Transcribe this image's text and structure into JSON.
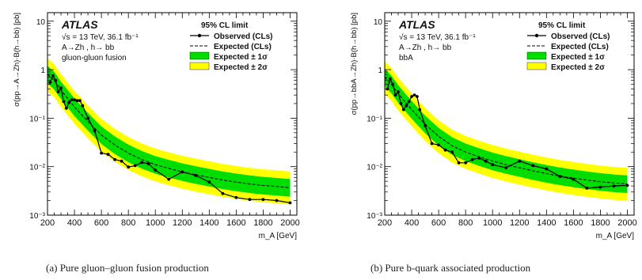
{
  "chart_data": [
    {
      "type": "line",
      "id": "a",
      "panel_label": "(a)",
      "caption": "Pure gluon–gluon fusion production",
      "experiment": "ATLAS",
      "energy_text": "√s = 13 TeV, 36.1 fb⁻¹",
      "process_text": "A→Zh , h→ bb",
      "production_text": "gluon-gluon fusion",
      "legend_title": "95% CL limit",
      "legend_position": "top-right",
      "xlabel": "m_A [GeV]",
      "ylabel": "σ(pp→A→Zh)·B(h→bb) [pb]",
      "xlim": [
        200,
        2050
      ],
      "ylim": [
        0.001,
        15
      ],
      "ylog": true,
      "xticks": [
        200,
        400,
        600,
        800,
        1000,
        1200,
        1400,
        1600,
        1800,
        2000
      ],
      "yticks": [
        0.001,
        0.01,
        0.1,
        1,
        10
      ],
      "ytick_labels": [
        "10⁻³",
        "10⁻²",
        "10⁻¹",
        "1",
        "10"
      ],
      "series": [
        {
          "name": "Observed (CLs)",
          "style": "solid-markers",
          "color": "#000000",
          "x": [
            220,
            240,
            260,
            280,
            300,
            320,
            340,
            360,
            380,
            400,
            420,
            440,
            460,
            500,
            550,
            600,
            650,
            700,
            750,
            800,
            850,
            900,
            950,
            1000,
            1100,
            1200,
            1300,
            1400,
            1500,
            1600,
            1700,
            1800,
            1900,
            2000
          ],
          "y": [
            0.55,
            0.75,
            0.6,
            0.35,
            0.42,
            0.22,
            0.16,
            0.21,
            0.24,
            0.24,
            0.23,
            0.23,
            0.18,
            0.1,
            0.055,
            0.019,
            0.018,
            0.014,
            0.013,
            0.0098,
            0.0105,
            0.0122,
            0.0115,
            0.0085,
            0.0055,
            0.0078,
            0.0066,
            0.0048,
            0.0028,
            0.0023,
            0.0021,
            0.0021,
            0.002,
            0.0018
          ]
        },
        {
          "name": "Expected (CLs)",
          "style": "dashed",
          "color": "#000000",
          "x": [
            200,
            250,
            300,
            400,
            500,
            600,
            700,
            800,
            900,
            1000,
            1100,
            1200,
            1300,
            1400,
            1500,
            1600,
            1700,
            1800,
            1900,
            2000
          ],
          "y": [
            0.8,
            0.6,
            0.38,
            0.17,
            0.085,
            0.045,
            0.028,
            0.019,
            0.014,
            0.011,
            0.0092,
            0.0078,
            0.0068,
            0.006,
            0.0053,
            0.0048,
            0.0044,
            0.0041,
            0.0039,
            0.0037
          ]
        },
        {
          "name": "Expected ± 1σ",
          "style": "band",
          "color": "#00dd00",
          "factor_low": 0.65,
          "factor_high": 1.5
        },
        {
          "name": "Expected ± 2σ",
          "style": "band",
          "color": "#ffff00",
          "factor_low": 0.45,
          "factor_high": 2.15
        }
      ]
    },
    {
      "type": "line",
      "id": "b",
      "panel_label": "(b)",
      "caption": "Pure b-quark associated production",
      "experiment": "ATLAS",
      "energy_text": "√s = 13 TeV, 36.1 fb⁻¹",
      "process_text": "A→Zh , h→ bb",
      "production_text": "bbA",
      "legend_title": "95% CL limit",
      "legend_position": "top-right",
      "xlabel": "m_A [GeV]",
      "ylabel": "σ(pp→bbA→Zh)·B(h→bb) [pb]",
      "xlim": [
        200,
        2050
      ],
      "ylim": [
        0.001,
        15
      ],
      "ylog": true,
      "xticks": [
        200,
        400,
        600,
        800,
        1000,
        1200,
        1400,
        1600,
        1800,
        2000
      ],
      "yticks": [
        0.001,
        0.01,
        0.1,
        1,
        10
      ],
      "ytick_labels": [
        "10⁻³",
        "10⁻²",
        "10⁻¹",
        "1",
        "10"
      ],
      "series": [
        {
          "name": "Observed (CLs)",
          "style": "solid-markers",
          "color": "#000000",
          "x": [
            220,
            240,
            260,
            280,
            300,
            320,
            340,
            360,
            380,
            400,
            420,
            440,
            460,
            500,
            550,
            600,
            650,
            700,
            750,
            800,
            850,
            900,
            950,
            1000,
            1100,
            1200,
            1300,
            1400,
            1500,
            1600,
            1700,
            1800,
            1900,
            2000
          ],
          "y": [
            0.4,
            0.65,
            0.5,
            0.3,
            0.35,
            0.2,
            0.15,
            0.18,
            0.22,
            0.28,
            0.3,
            0.28,
            0.15,
            0.07,
            0.03,
            0.028,
            0.022,
            0.02,
            0.012,
            0.012,
            0.014,
            0.015,
            0.013,
            0.011,
            0.0095,
            0.013,
            0.0105,
            0.009,
            0.0063,
            0.0055,
            0.0036,
            0.0038,
            0.004,
            0.0041
          ]
        },
        {
          "name": "Expected (CLs)",
          "style": "dashed",
          "color": "#000000",
          "x": [
            200,
            250,
            300,
            400,
            500,
            600,
            700,
            800,
            900,
            1000,
            1100,
            1200,
            1300,
            1400,
            1500,
            1600,
            1700,
            1800,
            1900,
            2000
          ],
          "y": [
            0.7,
            0.5,
            0.32,
            0.15,
            0.075,
            0.042,
            0.027,
            0.02,
            0.016,
            0.013,
            0.011,
            0.0095,
            0.0082,
            0.0072,
            0.0064,
            0.0058,
            0.0053,
            0.0049,
            0.0046,
            0.0044
          ]
        },
        {
          "name": "Expected ± 1σ",
          "style": "band",
          "color": "#00dd00",
          "factor_low": 0.65,
          "factor_high": 1.5
        },
        {
          "name": "Expected ± 2σ",
          "style": "band",
          "color": "#ffff00",
          "factor_low": 0.45,
          "factor_high": 2.15
        }
      ]
    }
  ]
}
